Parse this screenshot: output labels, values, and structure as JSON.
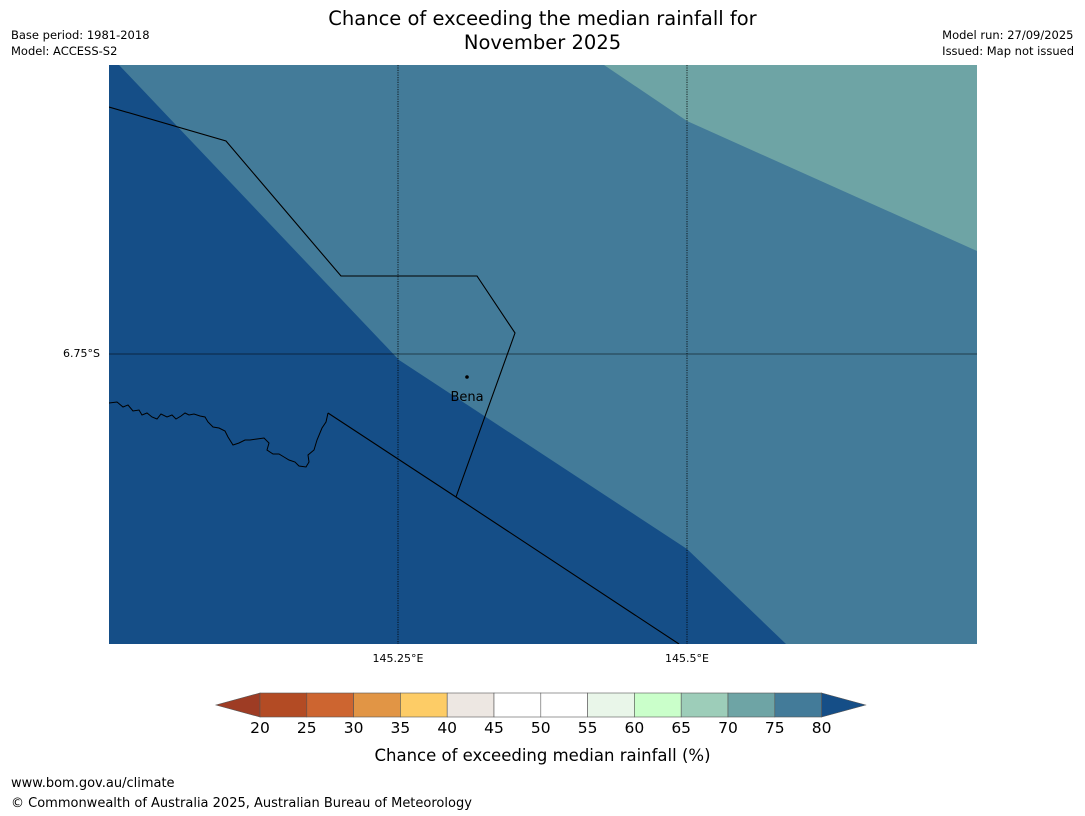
{
  "title": {
    "line1": "Chance of exceeding the median rainfall for",
    "line2": "November 2025"
  },
  "meta": {
    "base_period": "Base period: 1981-2018",
    "model": "Model: ACCESS-S2",
    "model_run": "Model run: 27/09/2025",
    "issued": "Issued: Map not issued"
  },
  "map": {
    "place_name": "Bena",
    "lat_label": "6.75°S",
    "lon_labels": [
      "145.25°E",
      "145.5°E"
    ],
    "regions": {
      "over_80_color": "#154e87",
      "75_80_color": "#437b99",
      "70_75_color": "#6ea4a5"
    }
  },
  "colorbar": {
    "label": "Chance of exceeding median rainfall (%)",
    "ticks": [
      "20",
      "25",
      "30",
      "35",
      "40",
      "45",
      "50",
      "55",
      "60",
      "65",
      "70",
      "75",
      "80"
    ],
    "colors": [
      "#9e3c24",
      "#b34b24",
      "#cd6530",
      "#e19545",
      "#fdcc66",
      "#ede7e2",
      "#ffffff",
      "#ffffff",
      "#e9f6e9",
      "#caffca",
      "#9dcdb9",
      "#6ea4a5",
      "#437b99",
      "#154e87"
    ]
  },
  "footer": {
    "url": "www.bom.gov.au/climate",
    "copyright": "© Commonwealth of Australia 2025, Australian Bureau of Meteorology"
  }
}
